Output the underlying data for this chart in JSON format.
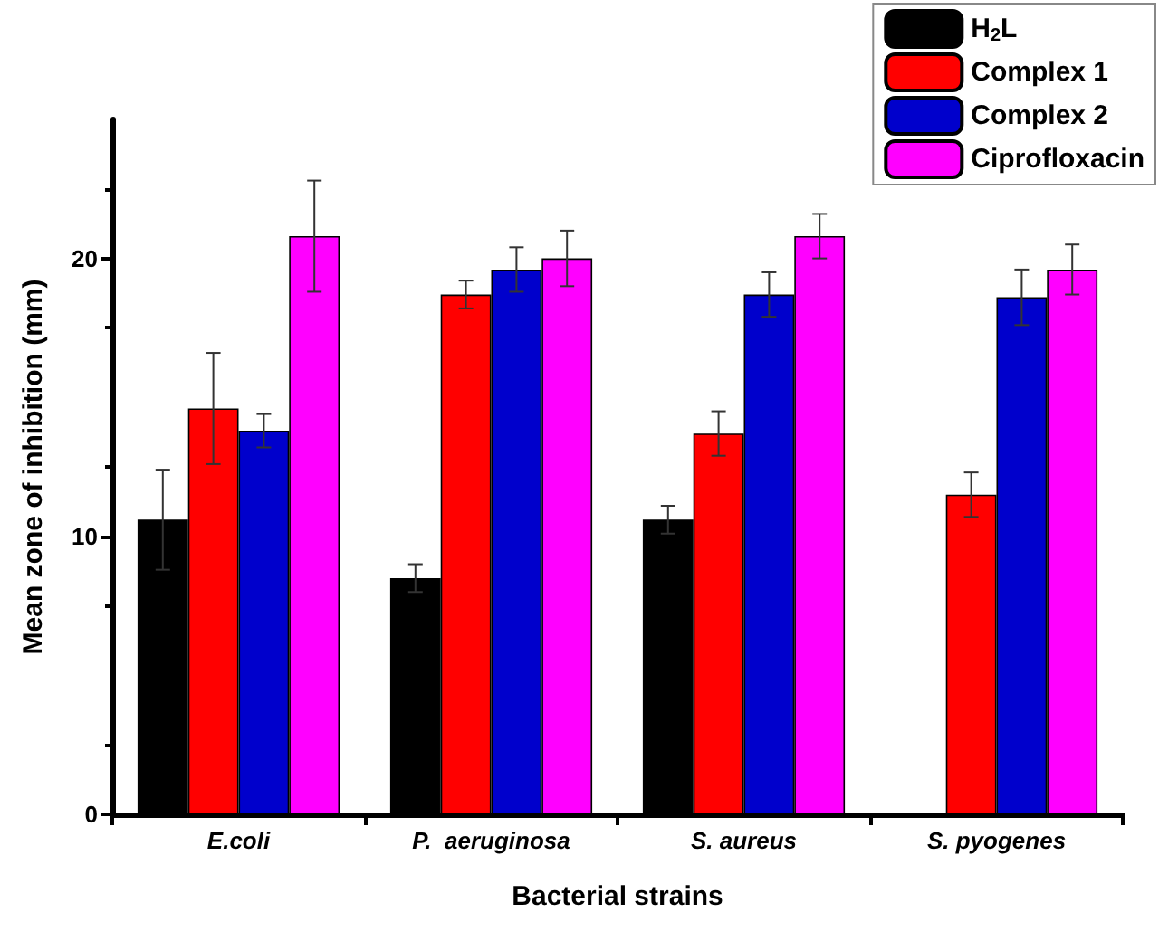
{
  "chart_data": {
    "type": "bar",
    "xlabel": "Bacterial strains",
    "ylabel": "Mean zone of inhibition (mm)",
    "categories": [
      "E.coli",
      "P.  aeruginosa",
      "S. aureus",
      "S. pyogenes"
    ],
    "series": [
      {
        "name": "H$_{2}$L",
        "color": "#000000",
        "values": [
          10.6,
          8.5,
          10.6,
          null
        ],
        "errors": [
          1.8,
          0.5,
          0.5,
          null
        ]
      },
      {
        "name": "Complex 1",
        "color": "#ff0000",
        "values": [
          14.6,
          18.7,
          13.7,
          11.5
        ],
        "errors": [
          2.0,
          0.5,
          0.8,
          0.8
        ]
      },
      {
        "name": "Complex 2",
        "color": "#0000cc",
        "values": [
          13.8,
          19.6,
          18.7,
          18.6
        ],
        "errors": [
          0.6,
          0.8,
          0.8,
          1.0
        ]
      },
      {
        "name": "Ciprofloxacin",
        "color": "#ff00ff",
        "values": [
          20.8,
          20.0,
          20.8,
          19.6
        ],
        "errors": [
          2.0,
          1.0,
          0.8,
          0.9
        ]
      }
    ],
    "ylim": [
      0,
      25
    ],
    "yticks": [
      0,
      10,
      20
    ],
    "grid": false,
    "legend": "top right"
  }
}
